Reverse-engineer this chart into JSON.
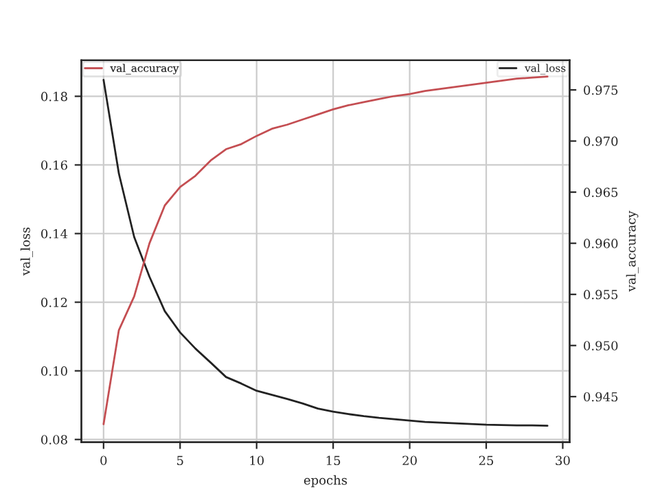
{
  "chart_data": {
    "type": "line",
    "xlabel": "epochs",
    "ylabel": "val_loss",
    "y2label": "val_accuracy",
    "x": [
      0,
      1,
      2,
      3,
      4,
      5,
      6,
      7,
      8,
      9,
      10,
      11,
      12,
      13,
      14,
      15,
      16,
      17,
      18,
      19,
      20,
      21,
      22,
      23,
      24,
      25,
      26,
      27,
      28,
      29
    ],
    "series": [
      {
        "name": "val_loss",
        "color": "#222222",
        "axis": "y",
        "values": [
          0.1848,
          0.1575,
          0.139,
          0.1274,
          0.1174,
          0.1112,
          0.1065,
          0.1024,
          0.0982,
          0.0963,
          0.0942,
          0.093,
          0.0918,
          0.0905,
          0.089,
          0.0881,
          0.0874,
          0.0868,
          0.0863,
          0.0859,
          0.0855,
          0.0851,
          0.0849,
          0.0847,
          0.0845,
          0.0843,
          0.0842,
          0.0841,
          0.0841,
          0.084
        ]
      },
      {
        "name": "val_accuracy",
        "color": "#c44e52",
        "axis": "y2",
        "values": [
          0.9423,
          0.9515,
          0.9548,
          0.96,
          0.9637,
          0.9655,
          0.9666,
          0.9681,
          0.9692,
          0.9697,
          0.9705,
          0.9712,
          0.9716,
          0.9721,
          0.9726,
          0.9731,
          0.9735,
          0.9738,
          0.9741,
          0.9744,
          0.9746,
          0.9749,
          0.9751,
          0.9753,
          0.9755,
          0.9757,
          0.9759,
          0.9761,
          0.9762,
          0.9763
        ]
      }
    ],
    "xlim": [
      -1.45,
      30.45
    ],
    "xticks": [
      0,
      5,
      10,
      15,
      20,
      25,
      30
    ],
    "ylim": [
      0.0792,
      0.1905
    ],
    "yticks": [
      0.08,
      {
        "value": 0.1,
        "label": "0.10"
      },
      0.12,
      0.14,
      0.16,
      0.18
    ],
    "y2lim": [
      0.94054,
      0.9779
    ],
    "y2ticks": [
      0.945,
      {
        "value": 0.95,
        "label": "0.950"
      },
      0.955,
      {
        "value": 0.96,
        "label": "0.960"
      },
      0.965,
      {
        "value": 0.97,
        "label": "0.970"
      },
      0.975
    ],
    "grid": true,
    "legend": "top",
    "line_style": "solid",
    "marker": "none"
  }
}
